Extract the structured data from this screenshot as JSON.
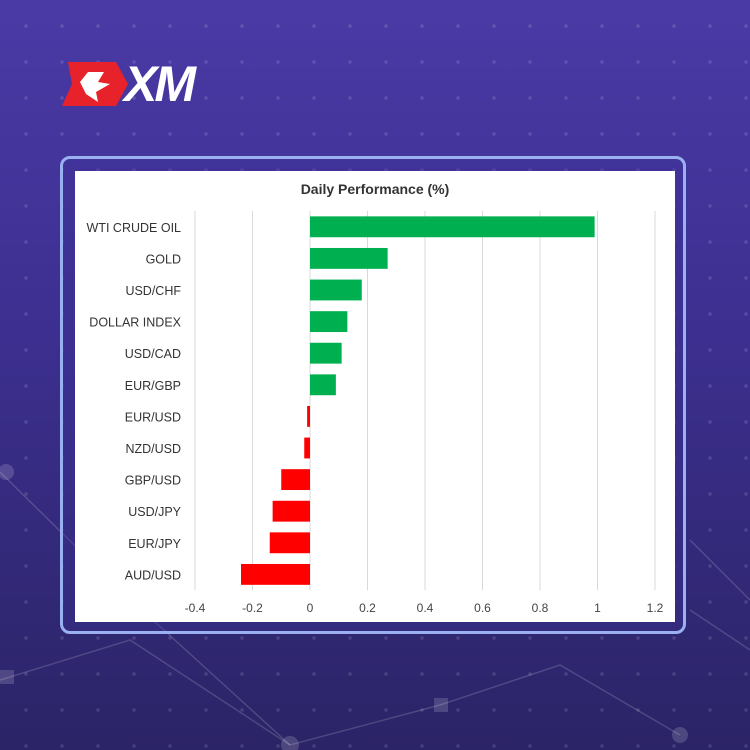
{
  "brand": {
    "logo_text": "XM",
    "colors": {
      "red": "#e8222a",
      "white": "#ffffff"
    }
  },
  "colors": {
    "positive": "#00b050",
    "negative": "#ff0000",
    "grid": "#d9d9d9"
  },
  "chart_data": {
    "type": "bar",
    "orientation": "horizontal",
    "title": "Daily Performance (%)",
    "xlabel": "",
    "ylabel": "",
    "categories": [
      "WTI CRUDE OIL",
      "GOLD",
      "USD/CHF",
      "DOLLAR INDEX",
      "USD/CAD",
      "EUR/GBP",
      "EUR/USD",
      "NZD/USD",
      "GBP/USD",
      "USD/JPY",
      "EUR/JPY",
      "AUD/USD"
    ],
    "values": [
      0.99,
      0.27,
      0.18,
      0.13,
      0.11,
      0.09,
      -0.01,
      -0.02,
      -0.1,
      -0.13,
      -0.14,
      -0.24
    ],
    "xlim": [
      -0.4,
      1.2
    ],
    "xticks": [
      "-0.4",
      "-0.2",
      "0",
      "0.2",
      "0.4",
      "0.6",
      "0.8",
      "1",
      "1.2"
    ],
    "grid": "vertical",
    "legend": "none"
  }
}
